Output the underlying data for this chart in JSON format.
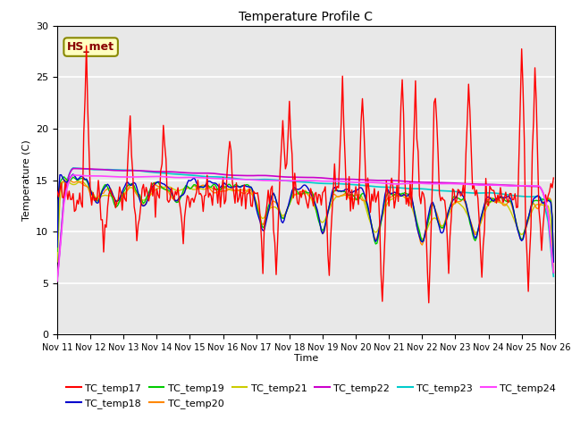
{
  "title": "Temperature Profile C",
  "xlabel": "Time",
  "ylabel": "Temperature (C)",
  "ylim": [
    0,
    30
  ],
  "annotation_text": "HS_met",
  "annotation_box_color": "#FFFFC0",
  "annotation_border_color": "#888800",
  "annotation_text_color": "#880000",
  "background_color": "#e8e8e8",
  "grid_color": "white",
  "series_colors": {
    "TC_temp17": "#FF0000",
    "TC_temp18": "#0000CC",
    "TC_temp19": "#00CC00",
    "TC_temp20": "#FF8800",
    "TC_temp21": "#CCCC00",
    "TC_temp22": "#CC00CC",
    "TC_temp23": "#00CCCC",
    "TC_temp24": "#FF44FF"
  },
  "x_tick_labels": [
    "Nov 11",
    "Nov 12",
    "Nov 13",
    "Nov 14",
    "Nov 15",
    "Nov 16",
    "Nov 17",
    "Nov 18",
    "Nov 19",
    "Nov 20",
    "Nov 21",
    "Nov 22",
    "Nov 23",
    "Nov 24",
    "Nov 25",
    "Nov 26"
  ],
  "x_tick_positions": [
    0,
    25,
    50,
    75,
    100,
    125,
    150,
    175,
    200,
    225,
    250,
    275,
    300,
    325,
    350,
    375
  ]
}
